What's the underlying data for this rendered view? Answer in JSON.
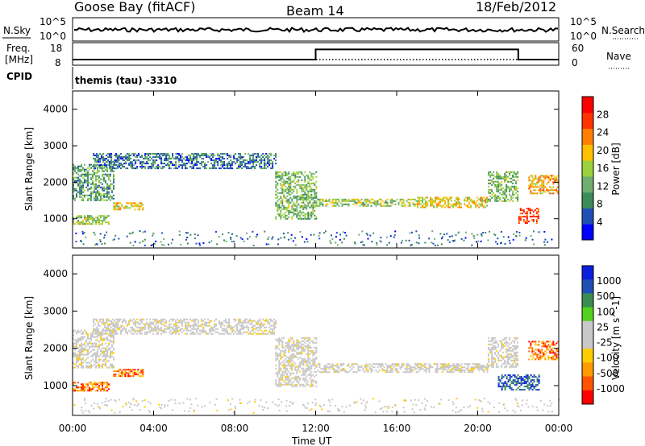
{
  "header": {
    "station": "Goose Bay (fitACF)",
    "beam": "Beam 14",
    "date": "18/Feb/2012"
  },
  "sky_panel": {
    "left_label": "N.Sky",
    "left_ticks": [
      "10^5",
      "10^0"
    ],
    "right_label": "N.Search",
    "right_ticks": [
      "10^5",
      "10^0"
    ]
  },
  "freq_panel": {
    "left_label_1": "Freq.",
    "left_label_2": "[MHz]",
    "left_ticks": [
      "18",
      "8"
    ],
    "right_label": "Nave",
    "right_ticks": [
      "60",
      "0"
    ]
  },
  "cpid": {
    "label": "CPID",
    "program": "themis (tau) -3310"
  },
  "colors": {
    "power_scale": [
      "#0000ff",
      "#1f4fb5",
      "#3c8c5a",
      "#6fae6e",
      "#9bd23c",
      "#ffc000",
      "#ff7f00",
      "#ff3300",
      "#ff0000"
    ],
    "velocity_scale": [
      "#ff0000",
      "#ff5500",
      "#ff9a00",
      "#ffcc00",
      "#c8c8c8",
      "#c8c8c8",
      "#52d21e",
      "#3a8c50",
      "#1f4fb5",
      "#0a1edc"
    ],
    "velocity_gray": "#c8c8c8"
  },
  "chart_data": [
    {
      "type": "heatmap",
      "name": "Power",
      "ylabel": "Slant Range [km]",
      "yticks": [
        "1000",
        "2000",
        "3000",
        "4000"
      ],
      "ylim": [
        200,
        4500
      ],
      "xlim": [
        0,
        24
      ],
      "colorbar_label": "Power [dB]",
      "colorbar_ticks": [
        "4",
        "8",
        "12",
        "16",
        "20",
        "24",
        "28"
      ],
      "colorbar_range": [
        0,
        30
      ],
      "echo_bands": [
        {
          "t0": 0.0,
          "t1": 2.0,
          "r0": 1500,
          "r1": 2500,
          "level": 10
        },
        {
          "t0": 0.0,
          "t1": 1.8,
          "r0": 850,
          "r1": 1100,
          "level": 14
        },
        {
          "t0": 2.0,
          "t1": 3.5,
          "r0": 1250,
          "r1": 1450,
          "level": 18
        },
        {
          "t0": 1.0,
          "t1": 10.0,
          "r0": 2400,
          "r1": 2800,
          "level": 6
        },
        {
          "t0": 10.0,
          "t1": 12.0,
          "r0": 1000,
          "r1": 2300,
          "level": 12
        },
        {
          "t0": 12.0,
          "t1": 17.0,
          "r0": 1350,
          "r1": 1550,
          "level": 14
        },
        {
          "t0": 17.0,
          "t1": 20.5,
          "r0": 1300,
          "r1": 1600,
          "level": 18
        },
        {
          "t0": 20.5,
          "t1": 22.0,
          "r0": 1500,
          "r1": 2300,
          "level": 12
        },
        {
          "t0": 22.0,
          "t1": 23.0,
          "r0": 900,
          "r1": 1300,
          "level": 28
        },
        {
          "t0": 22.5,
          "t1": 24.0,
          "r0": 1700,
          "r1": 2200,
          "level": 20
        }
      ]
    },
    {
      "type": "heatmap",
      "name": "Velocity",
      "ylabel": "Slant Range [km]",
      "yticks": [
        "1000",
        "2000",
        "3000",
        "4000"
      ],
      "ylim": [
        200,
        4500
      ],
      "xlim": [
        0,
        24
      ],
      "xlabel": "Time UT",
      "xticks": [
        "00:00",
        "04:00",
        "08:00",
        "12:00",
        "16:00",
        "20:00",
        "00:00"
      ],
      "colorbar_label": "Velocity [m s^-1]",
      "colorbar_ticks": [
        "1000",
        "500",
        "100",
        "25",
        "-25",
        "-100",
        "-500",
        "-1000"
      ],
      "echo_bands": [
        {
          "t0": 0.0,
          "t1": 2.0,
          "r0": 1500,
          "r1": 2500,
          "vel": 0
        },
        {
          "t0": 0.0,
          "t1": 1.8,
          "r0": 850,
          "r1": 1100,
          "vel": -200
        },
        {
          "t0": 2.0,
          "t1": 3.5,
          "r0": 1250,
          "r1": 1450,
          "vel": -300
        },
        {
          "t0": 1.0,
          "t1": 10.0,
          "r0": 2400,
          "r1": 2800,
          "vel": 0
        },
        {
          "t0": 10.0,
          "t1": 12.0,
          "r0": 1000,
          "r1": 2300,
          "vel": 0
        },
        {
          "t0": 12.0,
          "t1": 20.5,
          "r0": 1350,
          "r1": 1600,
          "vel": 0
        },
        {
          "t0": 20.5,
          "t1": 22.0,
          "r0": 1500,
          "r1": 2300,
          "vel": 0
        },
        {
          "t0": 21.0,
          "t1": 23.0,
          "r0": 900,
          "r1": 1300,
          "vel": 300
        },
        {
          "t0": 22.5,
          "t1": 24.0,
          "r0": 1700,
          "r1": 2200,
          "vel": -200
        }
      ]
    },
    {
      "type": "line",
      "name": "Frequency",
      "x": [
        0,
        12,
        12,
        22,
        22,
        24
      ],
      "y": [
        10.5,
        10.5,
        15,
        15,
        10.5,
        10.5
      ],
      "ylim": [
        8,
        18
      ]
    }
  ]
}
